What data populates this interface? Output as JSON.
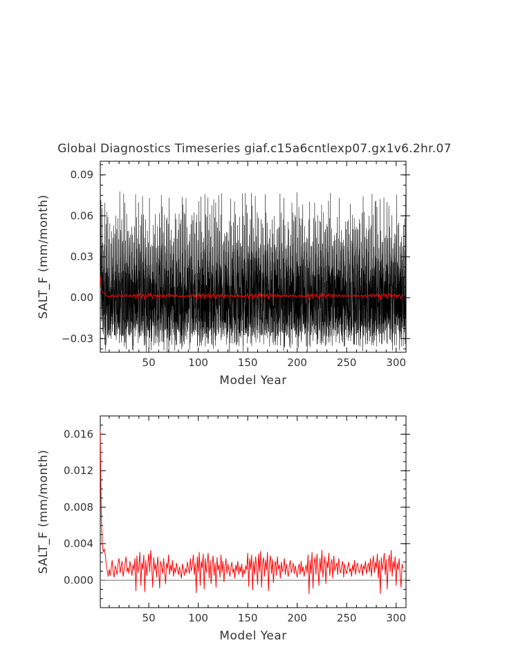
{
  "page": {
    "title": "Global Diagnostics Timeseries giaf.c15a6cntlexp07.gx1v6.2hr.07"
  },
  "colors": {
    "monthly": "#000000",
    "annual": "#ff0000",
    "zero_line": "#777777",
    "frame": "#000000"
  },
  "chart_data": [
    {
      "type": "line",
      "title": "Global Diagnostics Timeseries giaf.c15a6cntlexp07.gx1v6.2hr.07",
      "xlabel": "Model Year",
      "ylabel": "SALT_F (mm/month)",
      "xlim": [
        1,
        310
      ],
      "ylim": [
        -0.04,
        0.1
      ],
      "xticks": [
        50,
        100,
        150,
        200,
        250,
        300
      ],
      "xtick_labels": [
        "50",
        "100",
        "150",
        "200",
        "250",
        "300"
      ],
      "yticks": [
        -0.03,
        0.0,
        0.03,
        0.06,
        0.09
      ],
      "ytick_labels": [
        "−0.03",
        "0.00",
        "0.03",
        "0.06",
        "0.09"
      ],
      "zero_line": true,
      "grid": false,
      "series": [
        {
          "resolution": "monthly",
          "color": "#000000",
          "description_envelope": {
            "typical_min": -0.027,
            "typical_max": 0.06,
            "peak_max": 0.078,
            "peak_min": -0.036
          }
        },
        {
          "resolution": "annual",
          "color": "#ff0000",
          "start_value": 0.017,
          "mean_value": 0.0012
        }
      ]
    },
    {
      "type": "line",
      "title": "",
      "xlabel": "Model Year",
      "ylabel": "SALT_F (mm/month)",
      "xlim": [
        1,
        310
      ],
      "ylim": [
        -0.003,
        0.018
      ],
      "xticks": [
        50,
        100,
        150,
        200,
        250,
        300
      ],
      "xtick_labels": [
        "50",
        "100",
        "150",
        "200",
        "250",
        "300"
      ],
      "yticks": [
        0.0,
        0.004,
        0.008,
        0.012,
        0.016
      ],
      "ytick_labels": [
        "0.000",
        "0.004",
        "0.008",
        "0.012",
        "0.016"
      ],
      "zero_line": true,
      "grid": false,
      "series": [
        {
          "resolution": "annual",
          "color": "#ff0000",
          "x_start": 1,
          "values": [
            0.0165,
            0.0072,
            0.0039,
            0.0031,
            0.0034,
            0.0028,
            0.0018,
            0.0011,
            0.0004,
            0.0012,
            0.0005,
            0.0014,
            0.0022,
            0.0009,
            0.0003,
            0.0016,
            0.0012,
            0.0006,
            0.0019,
            0.0024,
            0.0008,
            0.0015,
            0.0021,
            0.0004,
            0.0011,
            0.0018,
            0.0026,
            0.0009,
            0.0014,
            0.0007,
            0.0021,
            0.0013,
            0.0005,
            0.0017,
            0.0011,
            0.0024,
            -0.0012,
            0.0027,
            0.0008,
            0.0015,
            0.0031,
            -0.0006,
            0.0019,
            0.0012,
            0.0028,
            -0.0013,
            0.0022,
            0.0005,
            0.0017,
            0.0029,
            0.0009,
            0.0033,
            0.0014,
            -0.0008,
            0.0025,
            0.0011,
            0.0018,
            0.0003,
            0.0026,
            0.0012,
            -0.0009,
            0.0021,
            0.0015,
            0.0007,
            0.0024,
            0.0009,
            -0.0004,
            0.0019,
            0.0013,
            0.0028,
            0.0006,
            0.0017,
            0.001,
            0.0022,
            0.0004,
            0.0014,
            0.0008,
            0.0019,
            0.0012,
            0.0006,
            0.0015,
            0.0009,
            0.0002,
            0.0018,
            0.0011,
            0.0005,
            0.0013,
            0.0008,
            0.002,
            0.0014,
            0.0007,
            0.0024,
            0.001,
            0.0016,
            0.0028,
            0.0006,
            0.0019,
            -0.0014,
            0.0026,
            0.0009,
            0.0031,
            -0.0006,
            0.0021,
            0.0013,
            0.0029,
            -0.001,
            0.0024,
            0.0008,
            0.0018,
            0.003,
            0.0002,
            0.0022,
            -0.0004,
            0.0016,
            0.0027,
            0.0005,
            0.0019,
            -0.0008,
            0.0025,
            0.0011,
            0.0017,
            0.0003,
            0.0028,
            0.0009,
            0.0021,
            -0.0002,
            0.0015,
            0.0024,
            0.0007,
            0.0018,
            0.0011,
            0.0004,
            0.0014,
            0.002,
            0.0008,
            0.0013,
            0.0002,
            0.0017,
            0.001,
            0.0021,
            0.0006,
            0.0015,
            0.0009,
            0.0018,
            0.0003,
            0.0012,
            0.0007,
            0.0016,
            0.0011,
            0.003,
            -0.0007,
            0.0024,
            0.0012,
            0.0028,
            -0.0011,
            0.0021,
            0.0006,
            0.0026,
            0.0014,
            -0.0005,
            0.0029,
            0.0009,
            0.0032,
            -0.0008,
            0.0018,
            0.0025,
            0.0004,
            0.0022,
            0.0011,
            0.0031,
            -0.0012,
            0.0019,
            0.0027,
            0.0007,
            0.0023,
            -0.0003,
            0.0016,
            0.0021,
            0.0005,
            0.0026,
            0.0012,
            0.0017,
            0.0002,
            0.002,
            0.0009,
            0.0014,
            0.0024,
            0.0006,
            0.0018,
            0.0011,
            0.0004,
            0.0015,
            0.0022,
            0.0008,
            0.0013,
            0.0019,
            0.0007,
            0.0016,
            0.001,
            0.0003,
            0.0012,
            0.0018,
            0.0006,
            0.0021,
            0.0009,
            0.0015,
            0.0004,
            0.0011,
            0.0017,
            0.0008,
            0.0028,
            -0.0015,
            0.0022,
            0.0007,
            0.0031,
            -0.0009,
            0.0019,
            0.0025,
            0.0006,
            0.0029,
            0.0012,
            -0.0006,
            0.0024,
            0.0009,
            0.0033,
            0.0003,
            0.0017,
            0.0026,
            -0.0004,
            0.0021,
            0.0013,
            0.003,
            0.0005,
            0.0018,
            0.0023,
            0.0002,
            0.0027,
            0.001,
            0.0015,
            0.0019,
            0.0006,
            0.0024,
            0.0012,
            0.0008,
            0.0016,
            0.0021,
            0.0003,
            0.0018,
            0.0011,
            0.0007,
            0.0014,
            0.002,
            0.0009,
            0.0013,
            0.0004,
            0.0017,
            0.001,
            0.0022,
            0.0006,
            0.0015,
            0.0019,
            0.0011,
            0.0008,
            0.0013,
            0.0018,
            0.0005,
            0.0016,
            0.0012,
            0.0021,
            0.0007,
            0.0014,
            0.0019,
            0.0009,
            0.0024,
            0.0004,
            0.0017,
            0.0027,
            0.0008,
            0.002,
            0.0013,
            0.0029,
            0.0002,
            0.0022,
            -0.0015,
            0.0025,
            0.0011,
            0.0018,
            0.003,
            0.0006,
            0.0023,
            -0.001,
            0.0016,
            0.0028,
            0.0009,
            0.0033,
            0.0004,
            0.0021,
            0.0012,
            0.0026,
            -0.0006,
            0.0019,
            0.0011,
            0.0024,
            0.0007,
            -0.0008,
            0.0018,
            0.0013
          ]
        }
      ]
    }
  ]
}
